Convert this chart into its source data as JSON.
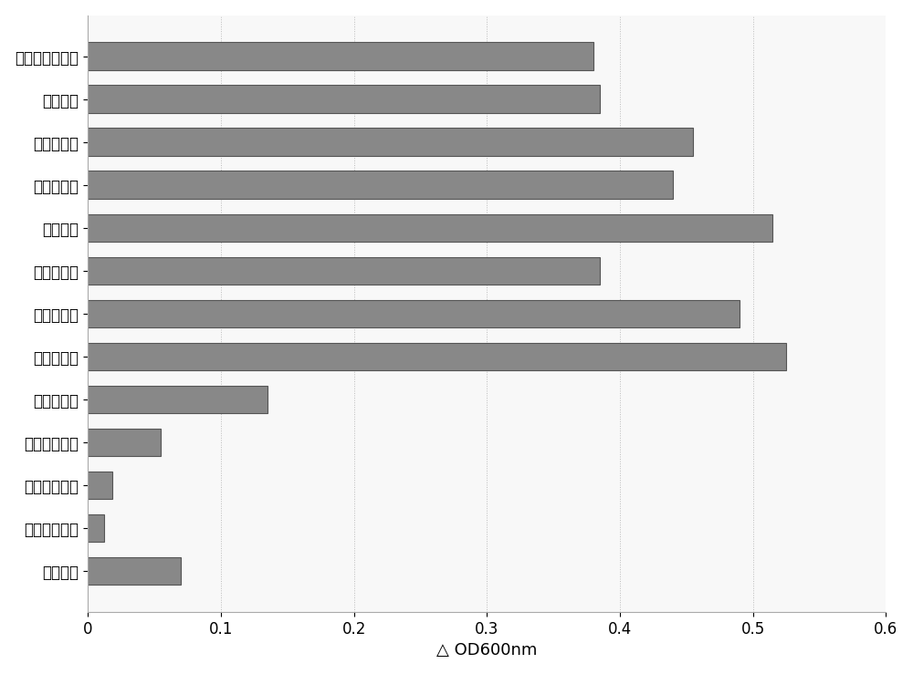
{
  "categories": [
    "大肠杆菌",
    "枯草芽胞杆菌",
    "铜绿假单胞菌",
    "鲍曼不动杆菌",
    "肺炎链球菌",
    "无乳链球菌",
    "停乳链球菌",
    "化脓链球菌",
    "猪链球菌",
    "变形链球菌",
    "海豚链球菌",
    "粪肠球菌",
    "金黄色葡萄球菌"
  ],
  "values": [
    0.07,
    0.012,
    0.018,
    0.055,
    0.135,
    0.525,
    0.49,
    0.385,
    0.515,
    0.44,
    0.455,
    0.385,
    0.38
  ],
  "bar_color": "#888888",
  "bar_edgecolor": "#555555",
  "xlabel": "△ OD600nm",
  "xlim": [
    0,
    0.6
  ],
  "xticks": [
    0,
    0.1,
    0.2,
    0.3,
    0.4,
    0.5,
    0.6
  ],
  "background_color": "#ffffff",
  "label_fontsize": 13,
  "tick_fontsize": 12,
  "bar_height": 0.65
}
